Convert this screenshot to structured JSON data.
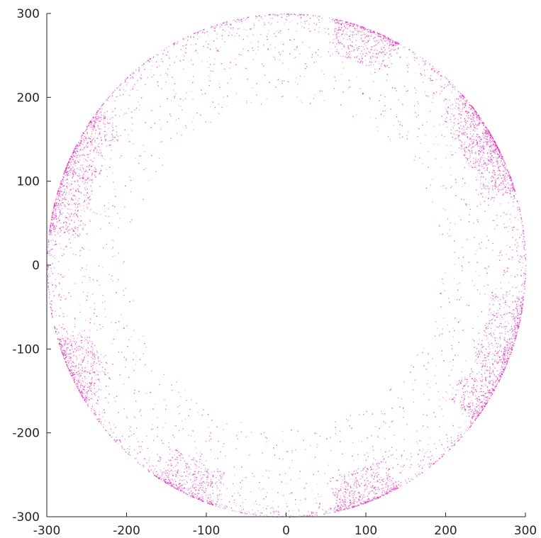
{
  "chart_data": {
    "type": "scatter",
    "title": "",
    "xlabel": "",
    "ylabel": "",
    "xlim": [
      -300,
      300
    ],
    "ylim": [
      -300,
      300
    ],
    "xticks": [
      -300,
      -200,
      -100,
      0,
      100,
      200,
      300
    ],
    "yticks": [
      -300,
      -200,
      -100,
      0,
      100,
      200,
      300
    ],
    "xtick_labels": [
      "-300",
      "-200",
      "-100",
      "0",
      "100",
      "200",
      "300"
    ],
    "ytick_labels": [
      "-300",
      "-200",
      "-100",
      "0",
      "100",
      "200",
      "300"
    ],
    "grid": false,
    "legend": "none",
    "point_color": "#d81bb0",
    "series": [
      {
        "shape": "disk",
        "center": [
          0,
          0
        ],
        "radius": 300,
        "description_points": "dense ring of points concentrated near the circle boundary, forming clusters at the listed angular positions",
        "cluster_angles_deg": [
          25,
          35,
          70,
          150,
          165,
          205,
          245,
          290,
          330,
          345
        ],
        "cluster_radius_range": [
          250,
          300
        ]
      }
    ]
  }
}
